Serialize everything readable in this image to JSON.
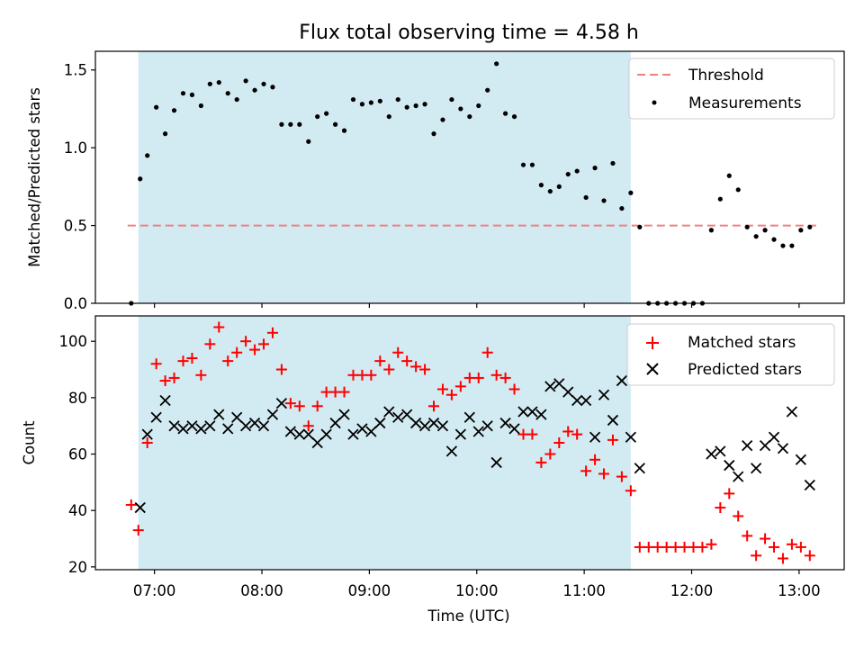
{
  "chart_data": {
    "title": "Flux total observing time = 4.58 h",
    "xlabel": "Time (UTC)",
    "x_ticks": [
      "07:00",
      "08:00",
      "09:00",
      "10:00",
      "11:00",
      "12:00",
      "13:00"
    ],
    "x_tick_hours": [
      7,
      8,
      9,
      10,
      11,
      12,
      13
    ],
    "xlim": [
      6.45,
      13.42
    ],
    "shaded_span": {
      "from": "06:51",
      "to": "11:26",
      "color": "#add8e6"
    },
    "panels": [
      {
        "type": "scatter",
        "ylabel": "Matched/Predicted stars",
        "ylim": [
          0,
          1.62
        ],
        "y_ticks": [
          0.0,
          0.5,
          1.0,
          1.5
        ],
        "y_tick_labels": [
          "0.0",
          "0.5",
          "1.0",
          "1.5"
        ],
        "legend_position": "top-right",
        "threshold": {
          "name": "Threshold",
          "y": 0.5,
          "x_from": "06:45",
          "x_to": "13:10",
          "color": "#f08080",
          "style": "dashed"
        },
        "series": [
          {
            "name": "Measurements",
            "color": "#000000",
            "marker": "dot",
            "points": [
              [
                "06:47",
                0.0
              ],
              [
                "06:52",
                0.8
              ],
              [
                "06:56",
                0.95
              ],
              [
                "07:01",
                1.26
              ],
              [
                "07:06",
                1.09
              ],
              [
                "07:11",
                1.24
              ],
              [
                "07:16",
                1.35
              ],
              [
                "07:21",
                1.34
              ],
              [
                "07:26",
                1.27
              ],
              [
                "07:31",
                1.41
              ],
              [
                "07:36",
                1.42
              ],
              [
                "07:41",
                1.35
              ],
              [
                "07:46",
                1.31
              ],
              [
                "07:51",
                1.43
              ],
              [
                "07:56",
                1.37
              ],
              [
                "08:01",
                1.41
              ],
              [
                "08:06",
                1.39
              ],
              [
                "08:11",
                1.15
              ],
              [
                "08:16",
                1.15
              ],
              [
                "08:21",
                1.15
              ],
              [
                "08:26",
                1.04
              ],
              [
                "08:31",
                1.2
              ],
              [
                "08:36",
                1.22
              ],
              [
                "08:41",
                1.15
              ],
              [
                "08:46",
                1.11
              ],
              [
                "08:51",
                1.31
              ],
              [
                "08:56",
                1.28
              ],
              [
                "09:01",
                1.29
              ],
              [
                "09:06",
                1.3
              ],
              [
                "09:11",
                1.2
              ],
              [
                "09:16",
                1.31
              ],
              [
                "09:21",
                1.26
              ],
              [
                "09:26",
                1.27
              ],
              [
                "09:31",
                1.28
              ],
              [
                "09:36",
                1.09
              ],
              [
                "09:41",
                1.18
              ],
              [
                "09:46",
                1.31
              ],
              [
                "09:51",
                1.25
              ],
              [
                "09:56",
                1.2
              ],
              [
                "10:01",
                1.27
              ],
              [
                "10:06",
                1.37
              ],
              [
                "10:11",
                1.54
              ],
              [
                "10:16",
                1.22
              ],
              [
                "10:21",
                1.2
              ],
              [
                "10:26",
                0.89
              ],
              [
                "10:31",
                0.89
              ],
              [
                "10:36",
                0.76
              ],
              [
                "10:41",
                0.72
              ],
              [
                "10:46",
                0.75
              ],
              [
                "10:51",
                0.83
              ],
              [
                "10:56",
                0.85
              ],
              [
                "11:01",
                0.68
              ],
              [
                "11:06",
                0.87
              ],
              [
                "11:11",
                0.66
              ],
              [
                "11:16",
                0.9
              ],
              [
                "11:21",
                0.61
              ],
              [
                "11:26",
                0.71
              ],
              [
                "11:31",
                0.49
              ],
              [
                "11:36",
                0.0
              ],
              [
                "11:41",
                0.0
              ],
              [
                "11:46",
                0.0
              ],
              [
                "11:51",
                0.0
              ],
              [
                "11:56",
                0.0
              ],
              [
                "12:01",
                0.0
              ],
              [
                "12:06",
                0.0
              ],
              [
                "12:11",
                0.47
              ],
              [
                "12:16",
                0.67
              ],
              [
                "12:21",
                0.82
              ],
              [
                "12:26",
                0.73
              ],
              [
                "12:31",
                0.49
              ],
              [
                "12:36",
                0.43
              ],
              [
                "12:41",
                0.47
              ],
              [
                "12:46",
                0.41
              ],
              [
                "12:51",
                0.37
              ],
              [
                "12:56",
                0.37
              ],
              [
                "13:01",
                0.47
              ],
              [
                "13:06",
                0.49
              ]
            ]
          }
        ]
      },
      {
        "type": "scatter",
        "ylabel": "Count",
        "ylim": [
          19,
          109
        ],
        "y_ticks": [
          20,
          40,
          60,
          80,
          100
        ],
        "y_tick_labels": [
          "20",
          "40",
          "60",
          "80",
          "100"
        ],
        "legend_position": "top-right",
        "series": [
          {
            "name": "Matched stars",
            "color": "#ff0000",
            "marker": "plus",
            "points": [
              [
                "06:47",
                42
              ],
              [
                "06:51",
                33
              ],
              [
                "06:56",
                64
              ],
              [
                "07:01",
                92
              ],
              [
                "07:06",
                86
              ],
              [
                "07:11",
                87
              ],
              [
                "07:16",
                93
              ],
              [
                "07:21",
                94
              ],
              [
                "07:26",
                88
              ],
              [
                "07:31",
                99
              ],
              [
                "07:36",
                105
              ],
              [
                "07:41",
                93
              ],
              [
                "07:46",
                96
              ],
              [
                "07:51",
                100
              ],
              [
                "07:56",
                97
              ],
              [
                "08:01",
                99
              ],
              [
                "08:06",
                103
              ],
              [
                "08:11",
                90
              ],
              [
                "08:16",
                78
              ],
              [
                "08:21",
                77
              ],
              [
                "08:26",
                70
              ],
              [
                "08:31",
                77
              ],
              [
                "08:36",
                82
              ],
              [
                "08:41",
                82
              ],
              [
                "08:46",
                82
              ],
              [
                "08:51",
                88
              ],
              [
                "08:56",
                88
              ],
              [
                "09:01",
                88
              ],
              [
                "09:06",
                93
              ],
              [
                "09:11",
                90
              ],
              [
                "09:16",
                96
              ],
              [
                "09:21",
                93
              ],
              [
                "09:26",
                91
              ],
              [
                "09:31",
                90
              ],
              [
                "09:36",
                77
              ],
              [
                "09:41",
                83
              ],
              [
                "09:46",
                81
              ],
              [
                "09:51",
                84
              ],
              [
                "09:56",
                87
              ],
              [
                "10:01",
                87
              ],
              [
                "10:06",
                96
              ],
              [
                "10:11",
                88
              ],
              [
                "10:16",
                87
              ],
              [
                "10:21",
                83
              ],
              [
                "10:26",
                67
              ],
              [
                "10:31",
                67
              ],
              [
                "10:36",
                57
              ],
              [
                "10:41",
                60
              ],
              [
                "10:46",
                64
              ],
              [
                "10:51",
                68
              ],
              [
                "10:56",
                67
              ],
              [
                "11:01",
                54
              ],
              [
                "11:06",
                58
              ],
              [
                "11:11",
                53
              ],
              [
                "11:16",
                65
              ],
              [
                "11:21",
                52
              ],
              [
                "11:26",
                47
              ],
              [
                "11:31",
                27
              ],
              [
                "11:36",
                27
              ],
              [
                "11:41",
                27
              ],
              [
                "11:46",
                27
              ],
              [
                "11:51",
                27
              ],
              [
                "11:56",
                27
              ],
              [
                "12:01",
                27
              ],
              [
                "12:06",
                27
              ],
              [
                "12:11",
                28
              ],
              [
                "12:16",
                41
              ],
              [
                "12:21",
                46
              ],
              [
                "12:26",
                38
              ],
              [
                "12:31",
                31
              ],
              [
                "12:36",
                24
              ],
              [
                "12:41",
                30
              ],
              [
                "12:46",
                27
              ],
              [
                "12:51",
                23
              ],
              [
                "12:56",
                28
              ],
              [
                "13:01",
                27
              ],
              [
                "13:06",
                24
              ]
            ]
          },
          {
            "name": "Predicted stars",
            "color": "#000000",
            "marker": "x",
            "points": [
              [
                "06:52",
                41
              ],
              [
                "06:56",
                67
              ],
              [
                "07:01",
                73
              ],
              [
                "07:06",
                79
              ],
              [
                "07:11",
                70
              ],
              [
                "07:16",
                69
              ],
              [
                "07:21",
                70
              ],
              [
                "07:26",
                69
              ],
              [
                "07:31",
                70
              ],
              [
                "07:36",
                74
              ],
              [
                "07:41",
                69
              ],
              [
                "07:46",
                73
              ],
              [
                "07:51",
                70
              ],
              [
                "07:56",
                71
              ],
              [
                "08:01",
                70
              ],
              [
                "08:06",
                74
              ],
              [
                "08:11",
                78
              ],
              [
                "08:16",
                68
              ],
              [
                "08:21",
                67
              ],
              [
                "08:26",
                67
              ],
              [
                "08:31",
                64
              ],
              [
                "08:36",
                67
              ],
              [
                "08:41",
                71
              ],
              [
                "08:46",
                74
              ],
              [
                "08:51",
                67
              ],
              [
                "08:56",
                69
              ],
              [
                "09:01",
                68
              ],
              [
                "09:06",
                71
              ],
              [
                "09:11",
                75
              ],
              [
                "09:16",
                73
              ],
              [
                "09:21",
                74
              ],
              [
                "09:26",
                71
              ],
              [
                "09:31",
                70
              ],
              [
                "09:36",
                71
              ],
              [
                "09:41",
                70
              ],
              [
                "09:46",
                61
              ],
              [
                "09:51",
                67
              ],
              [
                "09:56",
                73
              ],
              [
                "10:01",
                68
              ],
              [
                "10:06",
                70
              ],
              [
                "10:11",
                57
              ],
              [
                "10:16",
                71
              ],
              [
                "10:21",
                69
              ],
              [
                "10:26",
                75
              ],
              [
                "10:31",
                75
              ],
              [
                "10:36",
                74
              ],
              [
                "10:41",
                84
              ],
              [
                "10:46",
                85
              ],
              [
                "10:51",
                82
              ],
              [
                "10:56",
                79
              ],
              [
                "11:01",
                79
              ],
              [
                "11:06",
                66
              ],
              [
                "11:11",
                81
              ],
              [
                "11:16",
                72
              ],
              [
                "11:21",
                86
              ],
              [
                "11:26",
                66
              ],
              [
                "11:31",
                55
              ],
              [
                "12:11",
                60
              ],
              [
                "12:16",
                61
              ],
              [
                "12:21",
                56
              ],
              [
                "12:26",
                52
              ],
              [
                "12:31",
                63
              ],
              [
                "12:36",
                55
              ],
              [
                "12:41",
                63
              ],
              [
                "12:46",
                66
              ],
              [
                "12:51",
                62
              ],
              [
                "12:56",
                75
              ],
              [
                "13:01",
                58
              ],
              [
                "13:06",
                49
              ]
            ]
          }
        ]
      }
    ]
  }
}
